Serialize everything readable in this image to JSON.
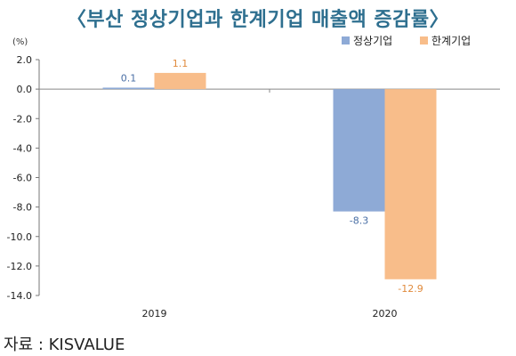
{
  "chart_data": {
    "type": "bar",
    "title": "〈부산 정상기업과 한계기업 매출액 증감률〉",
    "unit_label": "(%)",
    "categories": [
      "2019",
      "2020"
    ],
    "series": [
      {
        "name": "정상기업",
        "color": "#8eaad6",
        "label_color": "#4a6fa5",
        "values": [
          0.1,
          -8.3
        ]
      },
      {
        "name": "한계기업",
        "color": "#f8bd8a",
        "label_color": "#e08a3c",
        "values": [
          1.1,
          -12.9
        ]
      }
    ],
    "y_ticks": [
      "2.0",
      "0.0",
      "-2.0",
      "-4.0",
      "-6.0",
      "-8.0",
      "-10.0",
      "-12.0",
      "-14.0"
    ],
    "ylim": [
      -14,
      2
    ],
    "grid": false,
    "legend_position": "top-right"
  },
  "source": "자료 : KISVALUE"
}
